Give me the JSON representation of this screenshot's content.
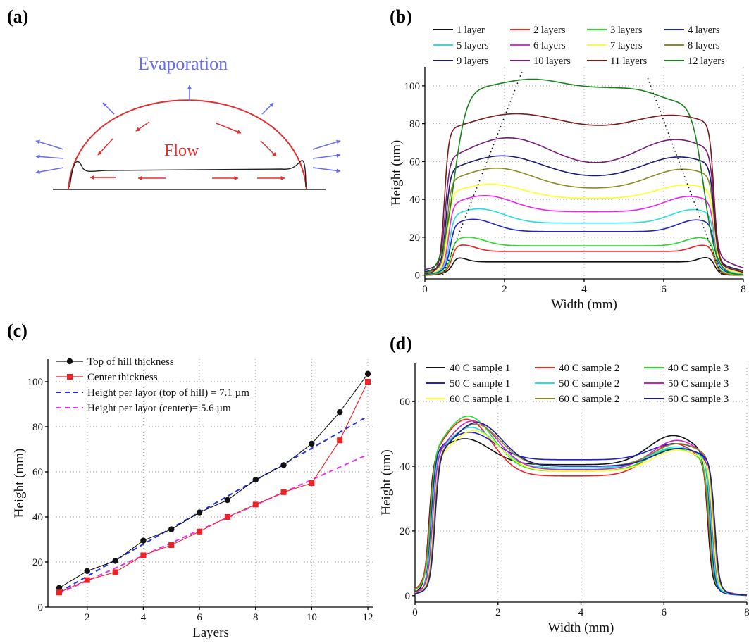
{
  "panels": {
    "a": {
      "label": "(a)",
      "evaporation": "Evaporation",
      "flow": "Flow",
      "colors": {
        "evaporation": "#6a6cf0",
        "flow": "#e23030",
        "drop": "#e23030",
        "film": "#222222"
      }
    },
    "b": {
      "label": "(b)"
    },
    "c": {
      "label": "(c)"
    },
    "d": {
      "label": "(d)"
    }
  },
  "chart_data": [
    {
      "id": "b",
      "type": "line",
      "xlabel": "Width (mm)",
      "ylabel": "Height (um)",
      "xlim": [
        0,
        8
      ],
      "ylim": [
        -2,
        110
      ],
      "xticks": [
        0,
        2,
        4,
        6,
        8
      ],
      "yticks": [
        0,
        20,
        40,
        60,
        80,
        100
      ],
      "grid": true,
      "legend_placement": "top",
      "series": [
        {
          "name": "1 layer",
          "color": "#111111",
          "center": 7,
          "rim": 9.5
        },
        {
          "name": "2 layers",
          "color": "#ee2222",
          "center": 12.5,
          "rim": 16
        },
        {
          "name": "3 layers",
          "color": "#22dd22",
          "center": 15.5,
          "rim": 20
        },
        {
          "name": "4 layers",
          "color": "#2222cc",
          "center": 23,
          "rim": 29.5
        },
        {
          "name": "5 layers",
          "color": "#22e0e0",
          "center": 27.5,
          "rim": 35
        },
        {
          "name": "6 layers",
          "color": "#ee22ee",
          "center": 33.5,
          "rim": 42
        },
        {
          "name": "7 layers",
          "color": "#ffff22",
          "center": 40.5,
          "rim": 48
        },
        {
          "name": "8 layers",
          "color": "#8b8b22",
          "center": 45.5,
          "rim": 56.5
        },
        {
          "name": "9 layers",
          "color": "#1a1a7a",
          "center": 51,
          "rim": 63
        },
        {
          "name": "10 layers",
          "color": "#7a1a7a",
          "center": 55,
          "rim": 72.5
        },
        {
          "name": "11 layers",
          "color": "#7a1a1a",
          "center": 74,
          "rim": 86.5
        },
        {
          "name": "12 layers",
          "color": "#1a801a",
          "center": 100,
          "rim": 103.5
        }
      ],
      "annotation": "dotted lines mark rim peak positions"
    },
    {
      "id": "c",
      "type": "line",
      "xlabel": "Layers",
      "ylabel": "Height (mm)",
      "xlim": [
        0.6,
        12.2
      ],
      "ylim": [
        0,
        110
      ],
      "xticks": [
        2,
        4,
        6,
        8,
        10,
        12
      ],
      "yticks": [
        0,
        20,
        40,
        60,
        80,
        100
      ],
      "grid": true,
      "legend_placement": "top-left",
      "x": [
        1,
        2,
        3,
        4,
        5,
        6,
        7,
        8,
        9,
        10,
        11,
        12
      ],
      "series": [
        {
          "name": "Top of hill thickness",
          "color": "#111111",
          "marker": "circle",
          "values": [
            8.5,
            16,
            20.5,
            29.5,
            34.5,
            42,
            47.5,
            56.5,
            63,
            72.5,
            86.5,
            103.5
          ]
        },
        {
          "name": "Center thickness",
          "color": "#ee2222",
          "marker": "square",
          "values": [
            6.5,
            12,
            15.5,
            23,
            27.5,
            33.5,
            40,
            45.5,
            51,
            55,
            74,
            100
          ]
        },
        {
          "name": "Height per layor (top of hill) = 7.1 µm",
          "color": "#2233dd",
          "dash": true,
          "fit": {
            "slope": 7.1,
            "intercept": -0.5
          }
        },
        {
          "name": "Height per layor (center)= 5.6 µm",
          "color": "#ee33ee",
          "dash": true,
          "fit": {
            "slope": 5.6,
            "intercept": 0.5
          }
        }
      ]
    },
    {
      "id": "d",
      "type": "line",
      "xlabel": "Width (mm)",
      "ylabel": "Height (um)",
      "xlim": [
        0,
        8
      ],
      "ylim": [
        -2,
        72
      ],
      "xticks": [
        0,
        2,
        4,
        6,
        8
      ],
      "yticks": [
        0,
        20,
        40,
        60
      ],
      "grid": true,
      "legend_placement": "top",
      "series": [
        {
          "name": "40 C sample 1",
          "color": "#111111",
          "p1": 48.5,
          "c": 40.5,
          "p2": 49.5
        },
        {
          "name": "40 C sample 2",
          "color": "#ee2222",
          "p1": 54.5,
          "c": 37,
          "p2": 47
        },
        {
          "name": "40 C sample 3",
          "color": "#22dd22",
          "p1": 55.5,
          "c": 38.5,
          "p2": 45.5
        },
        {
          "name": "50 C sample 1",
          "color": "#2222cc",
          "p1": 50.5,
          "c": 42,
          "p2": 47
        },
        {
          "name": "50 C sample 2",
          "color": "#22e0e0",
          "p1": 52,
          "c": 39.5,
          "p2": 46
        },
        {
          "name": "50 C sample 3",
          "color": "#cc22cc",
          "p1": 54,
          "c": 39,
          "p2": 48
        },
        {
          "name": "60 C sample 1",
          "color": "#ffff22",
          "p1": 51,
          "c": 38.5,
          "p2": 45
        },
        {
          "name": "60 C sample 2",
          "color": "#8b8b22",
          "p1": 53,
          "c": 40,
          "p2": 47
        },
        {
          "name": "60 C sample 3",
          "color": "#1a1a9a",
          "p1": 53.5,
          "c": 40,
          "p2": 45.5
        }
      ]
    }
  ]
}
